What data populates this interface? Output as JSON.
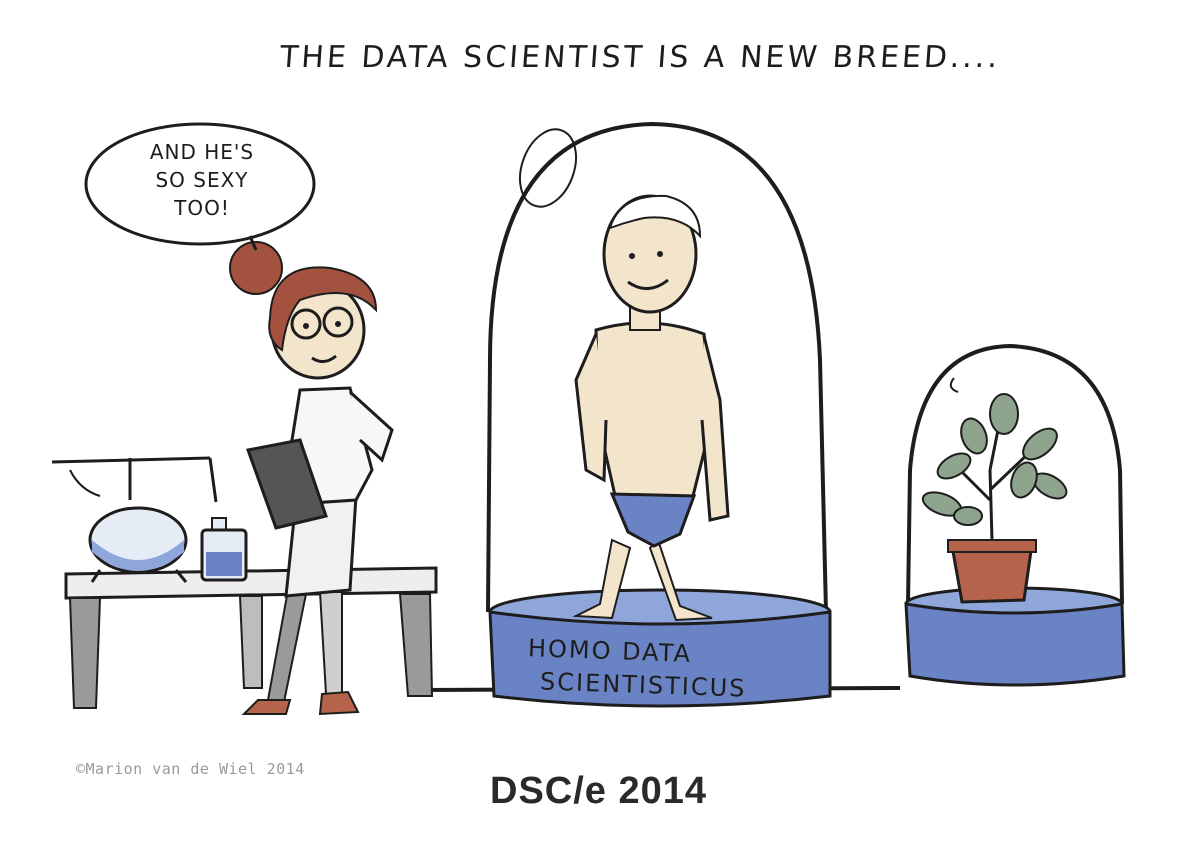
{
  "headline": "THE DATA SCIENTIST IS A NEW BREED....",
  "speech_bubble": {
    "lines": [
      "AND HE'S",
      "SO SEXY",
      "TOO!"
    ]
  },
  "pedestal_label": {
    "line1": "HOMO DATA",
    "line2": "SCIENTISTICUS"
  },
  "credit": "©Marion van de Wiel 2014",
  "footer_title": "DSC/e 2014",
  "colors": {
    "dome_base_blue": "#6a83c4",
    "flask_liquid": "#8ea6da",
    "pot_terracotta": "#b5634a",
    "leaf_green": "#8ea48c",
    "skin": "#f3e4cc",
    "hair_red": "#a3523f",
    "ink": "#1d1d1d"
  }
}
